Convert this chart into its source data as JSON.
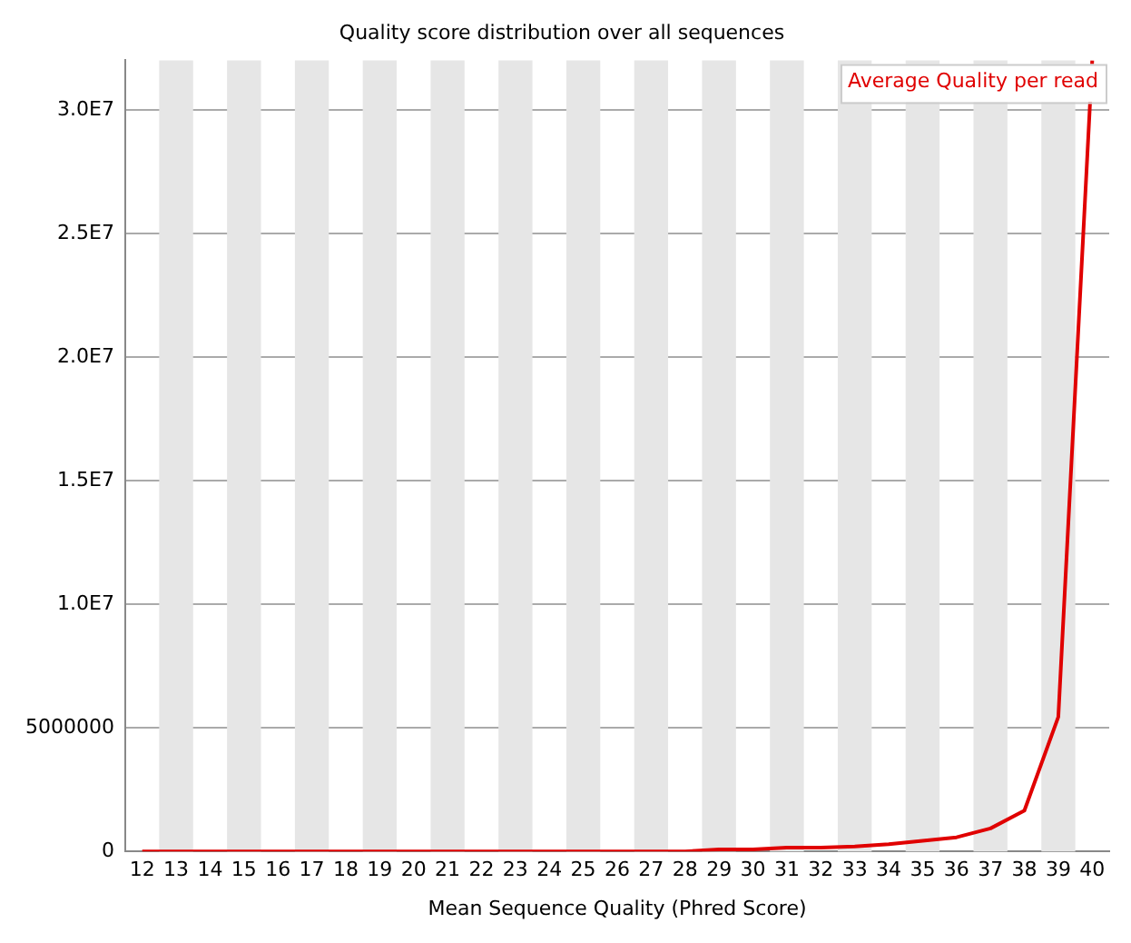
{
  "chart_data": {
    "type": "line",
    "title": "Quality score distribution over all sequences",
    "xlabel": "Mean Sequence Quality (Phred Score)",
    "categories": [
      "12",
      "13",
      "14",
      "15",
      "16",
      "17",
      "18",
      "19",
      "20",
      "21",
      "22",
      "23",
      "24",
      "25",
      "26",
      "27",
      "28",
      "29",
      "30",
      "31",
      "32",
      "33",
      "34",
      "35",
      "36",
      "37",
      "38",
      "39",
      "40"
    ],
    "series": [
      {
        "name": "Average Quality per read",
        "color": "#e00000",
        "values": [
          0,
          0,
          0,
          0,
          0,
          0,
          0,
          0,
          0,
          0,
          0,
          0,
          0,
          0,
          0,
          0,
          0,
          80000,
          80000,
          150000,
          150000,
          200000,
          290000,
          430000,
          570000,
          930000,
          1650000,
          5440000,
          32000000
        ]
      }
    ],
    "ylim": [
      0,
      32000000
    ],
    "yticks": [
      0,
      5000000,
      {
        "value": 10000000,
        "label": "1.0E7"
      },
      {
        "value": 15000000,
        "label": "1.5E7"
      },
      {
        "value": 20000000,
        "label": "2.0E7"
      },
      {
        "value": 25000000,
        "label": "2.5E7"
      },
      {
        "value": 30000000,
        "label": "3.0E7"
      }
    ],
    "grid": "y",
    "legend": "top right",
    "marker": "none",
    "line_style": "solid",
    "bands": [
      {
        "axis": "x",
        "from": "13",
        "to": "13",
        "color": "#e6e6e6"
      },
      {
        "axis": "x",
        "from": "15",
        "to": "15",
        "color": "#e6e6e6"
      },
      {
        "axis": "x",
        "from": "17",
        "to": "17",
        "color": "#e6e6e6"
      },
      {
        "axis": "x",
        "from": "19",
        "to": "19",
        "color": "#e6e6e6"
      },
      {
        "axis": "x",
        "from": "21",
        "to": "21",
        "color": "#e6e6e6"
      },
      {
        "axis": "x",
        "from": "23",
        "to": "23",
        "color": "#e6e6e6"
      },
      {
        "axis": "x",
        "from": "25",
        "to": "25",
        "color": "#e6e6e6"
      },
      {
        "axis": "x",
        "from": "27",
        "to": "27",
        "color": "#e6e6e6"
      },
      {
        "axis": "x",
        "from": "29",
        "to": "29",
        "color": "#e6e6e6"
      },
      {
        "axis": "x",
        "from": "31",
        "to": "31",
        "color": "#e6e6e6"
      },
      {
        "axis": "x",
        "from": "33",
        "to": "33",
        "color": "#e6e6e6"
      },
      {
        "axis": "x",
        "from": "35",
        "to": "35",
        "color": "#e6e6e6"
      },
      {
        "axis": "x",
        "from": "37",
        "to": "37",
        "color": "#e6e6e6"
      },
      {
        "axis": "x",
        "from": "39",
        "to": "39",
        "color": "#e6e6e6"
      }
    ]
  }
}
